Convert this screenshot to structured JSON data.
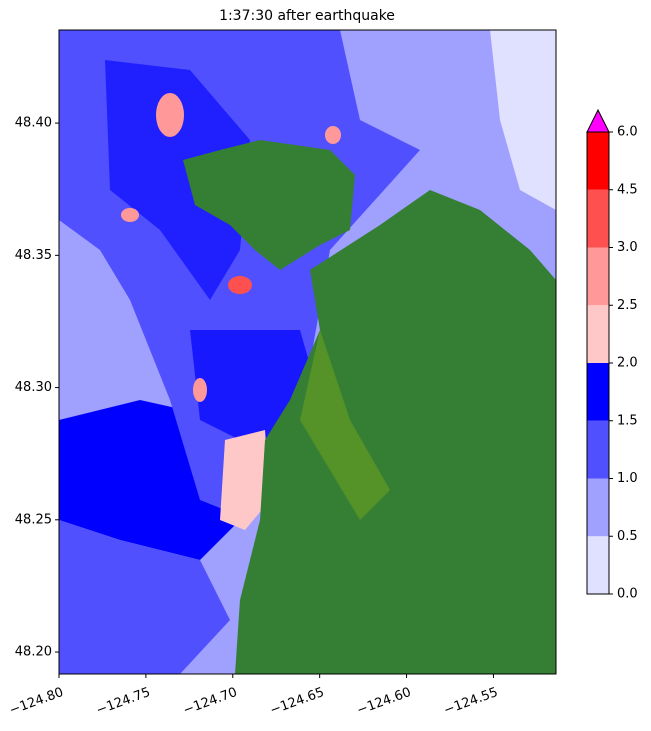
{
  "chart_data": {
    "type": "map",
    "title": "1:37:30 after earthquake",
    "xlim": [
      -124.8,
      -124.514
    ],
    "ylim": [
      48.1917,
      48.4352
    ],
    "xticks": [
      {
        "value": -124.8,
        "label": "−124.80"
      },
      {
        "value": -124.75,
        "label": "−124.75"
      },
      {
        "value": -124.7,
        "label": "−124.70"
      },
      {
        "value": -124.65,
        "label": "−124.65"
      },
      {
        "value": -124.6,
        "label": "−124.60"
      },
      {
        "value": -124.55,
        "label": "−124.55"
      }
    ],
    "yticks": [
      {
        "value": 48.2,
        "label": "48.20"
      },
      {
        "value": 48.25,
        "label": "48.25"
      },
      {
        "value": 48.3,
        "label": "48.30"
      },
      {
        "value": 48.35,
        "label": "48.35"
      },
      {
        "value": 48.4,
        "label": "48.40"
      }
    ],
    "colorbar": {
      "levels": [
        {
          "value": 0,
          "label": "0.0"
        },
        {
          "value": 0.5,
          "label": "0.5"
        },
        {
          "value": 1,
          "label": "1.0"
        },
        {
          "value": 1.5,
          "label": "1.5"
        },
        {
          "value": 2,
          "label": "2.0"
        },
        {
          "value": 2.5,
          "label": "2.5"
        },
        {
          "value": 3,
          "label": "3.0"
        },
        {
          "value": 4.5,
          "label": "4.5"
        },
        {
          "value": 6,
          "label": "6.0"
        }
      ],
      "colors": [
        "#e0e0ff",
        "#a0a0ff",
        "#5050ff",
        "#0000ff",
        "#ffc8c8",
        "#ff9999",
        "#ff5050",
        "#ff0000"
      ],
      "over_color": "#ff00ff"
    }
  }
}
